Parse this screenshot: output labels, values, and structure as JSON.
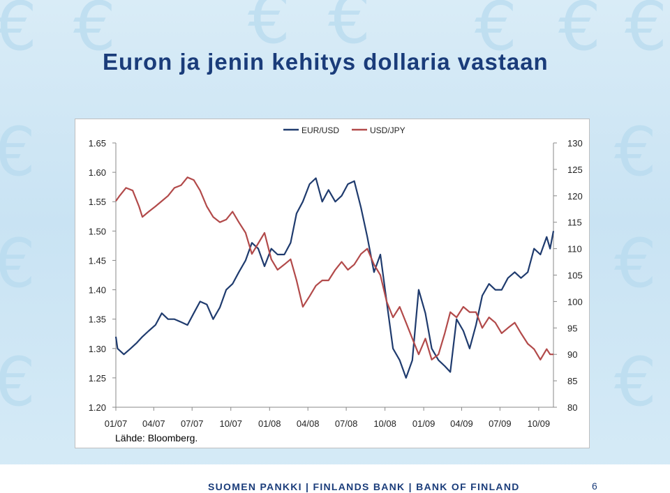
{
  "slide": {
    "title": "Euron ja jenin kehitys dollaria vastaan",
    "source": "Lähde: Bloomberg.",
    "footer": "SUOMEN PANKKI | FINLANDS BANK | BANK OF FINLAND",
    "page_number": "6",
    "background_icon": "euro-sign-icon"
  },
  "chart_data": {
    "type": "line",
    "title": "",
    "legend_position": "top",
    "grid": false,
    "x_tick_labels": [
      "01/07",
      "04/07",
      "07/07",
      "10/07",
      "01/08",
      "04/08",
      "07/08",
      "10/08",
      "01/09",
      "04/09",
      "07/09",
      "10/09"
    ],
    "x_ticks": [
      "2007-01-01",
      "2007-04-01",
      "2007-07-01",
      "2007-10-01",
      "2008-01-01",
      "2008-04-01",
      "2008-07-01",
      "2008-10-01",
      "2009-01-01",
      "2009-04-01",
      "2009-07-01",
      "2009-10-01"
    ],
    "xlim": [
      "2007-01-01",
      "2009-11-05"
    ],
    "y_left": {
      "lim": [
        1.2,
        1.65
      ],
      "ticks": [
        "1.20",
        "1.25",
        "1.30",
        "1.35",
        "1.40",
        "1.45",
        "1.50",
        "1.55",
        "1.60",
        "1.65"
      ]
    },
    "y_right": {
      "lim": [
        80,
        130
      ],
      "ticks": [
        "80",
        "85",
        "90",
        "95",
        "100",
        "105",
        "110",
        "115",
        "120",
        "125",
        "130"
      ]
    },
    "series": [
      {
        "name": "EUR/USD",
        "axis": "left",
        "color": "#1f3b6e",
        "points": [
          [
            "2007-01-01",
            1.32
          ],
          [
            "2007-01-05",
            1.3
          ],
          [
            "2007-01-20",
            1.29
          ],
          [
            "2007-02-05",
            1.3
          ],
          [
            "2007-02-20",
            1.31
          ],
          [
            "2007-03-05",
            1.32
          ],
          [
            "2007-03-20",
            1.33
          ],
          [
            "2007-04-05",
            1.34
          ],
          [
            "2007-04-20",
            1.36
          ],
          [
            "2007-05-05",
            1.35
          ],
          [
            "2007-05-20",
            1.35
          ],
          [
            "2007-06-05",
            1.345
          ],
          [
            "2007-06-20",
            1.34
          ],
          [
            "2007-07-05",
            1.36
          ],
          [
            "2007-07-20",
            1.38
          ],
          [
            "2007-08-05",
            1.375
          ],
          [
            "2007-08-20",
            1.35
          ],
          [
            "2007-09-05",
            1.37
          ],
          [
            "2007-09-20",
            1.4
          ],
          [
            "2007-10-05",
            1.41
          ],
          [
            "2007-10-20",
            1.43
          ],
          [
            "2007-11-05",
            1.45
          ],
          [
            "2007-11-20",
            1.48
          ],
          [
            "2007-12-05",
            1.47
          ],
          [
            "2007-12-20",
            1.44
          ],
          [
            "2008-01-05",
            1.47
          ],
          [
            "2008-01-20",
            1.46
          ],
          [
            "2008-02-05",
            1.46
          ],
          [
            "2008-02-20",
            1.48
          ],
          [
            "2008-03-05",
            1.53
          ],
          [
            "2008-03-20",
            1.55
          ],
          [
            "2008-04-05",
            1.58
          ],
          [
            "2008-04-20",
            1.59
          ],
          [
            "2008-05-05",
            1.55
          ],
          [
            "2008-05-20",
            1.57
          ],
          [
            "2008-06-05",
            1.55
          ],
          [
            "2008-06-20",
            1.56
          ],
          [
            "2008-07-05",
            1.58
          ],
          [
            "2008-07-20",
            1.585
          ],
          [
            "2008-08-05",
            1.54
          ],
          [
            "2008-08-20",
            1.49
          ],
          [
            "2008-09-05",
            1.43
          ],
          [
            "2008-09-20",
            1.46
          ],
          [
            "2008-10-05",
            1.38
          ],
          [
            "2008-10-20",
            1.3
          ],
          [
            "2008-11-05",
            1.28
          ],
          [
            "2008-11-20",
            1.25
          ],
          [
            "2008-12-05",
            1.28
          ],
          [
            "2008-12-20",
            1.4
          ],
          [
            "2009-01-05",
            1.36
          ],
          [
            "2009-01-20",
            1.3
          ],
          [
            "2009-02-05",
            1.28
          ],
          [
            "2009-02-20",
            1.27
          ],
          [
            "2009-03-05",
            1.26
          ],
          [
            "2009-03-20",
            1.35
          ],
          [
            "2009-04-05",
            1.33
          ],
          [
            "2009-04-20",
            1.3
          ],
          [
            "2009-05-05",
            1.34
          ],
          [
            "2009-05-20",
            1.39
          ],
          [
            "2009-06-05",
            1.41
          ],
          [
            "2009-06-20",
            1.4
          ],
          [
            "2009-07-05",
            1.4
          ],
          [
            "2009-07-20",
            1.42
          ],
          [
            "2009-08-05",
            1.43
          ],
          [
            "2009-08-20",
            1.42
          ],
          [
            "2009-09-05",
            1.43
          ],
          [
            "2009-09-20",
            1.47
          ],
          [
            "2009-10-05",
            1.46
          ],
          [
            "2009-10-20",
            1.49
          ],
          [
            "2009-10-28",
            1.47
          ],
          [
            "2009-11-05",
            1.5
          ]
        ]
      },
      {
        "name": "USD/JPY",
        "axis": "right",
        "color": "#b24a4a",
        "points": [
          [
            "2007-01-01",
            119
          ],
          [
            "2007-01-10",
            120
          ],
          [
            "2007-01-25",
            121.5
          ],
          [
            "2007-02-10",
            121
          ],
          [
            "2007-02-25",
            118
          ],
          [
            "2007-03-05",
            116
          ],
          [
            "2007-03-20",
            117
          ],
          [
            "2007-04-05",
            118
          ],
          [
            "2007-04-20",
            119
          ],
          [
            "2007-05-05",
            120
          ],
          [
            "2007-05-20",
            121.5
          ],
          [
            "2007-06-05",
            122
          ],
          [
            "2007-06-20",
            123.5
          ],
          [
            "2007-07-05",
            123
          ],
          [
            "2007-07-20",
            121
          ],
          [
            "2007-08-05",
            118
          ],
          [
            "2007-08-20",
            116
          ],
          [
            "2007-09-05",
            115
          ],
          [
            "2007-09-20",
            115.5
          ],
          [
            "2007-10-05",
            117
          ],
          [
            "2007-10-20",
            115
          ],
          [
            "2007-11-05",
            113
          ],
          [
            "2007-11-20",
            109
          ],
          [
            "2007-12-05",
            111
          ],
          [
            "2007-12-20",
            113
          ],
          [
            "2008-01-05",
            108
          ],
          [
            "2008-01-20",
            106
          ],
          [
            "2008-02-05",
            107
          ],
          [
            "2008-02-20",
            108
          ],
          [
            "2008-03-05",
            104
          ],
          [
            "2008-03-20",
            99
          ],
          [
            "2008-04-05",
            101
          ],
          [
            "2008-04-20",
            103
          ],
          [
            "2008-05-05",
            104
          ],
          [
            "2008-05-20",
            104
          ],
          [
            "2008-06-05",
            106
          ],
          [
            "2008-06-20",
            107.5
          ],
          [
            "2008-07-05",
            106
          ],
          [
            "2008-07-20",
            107
          ],
          [
            "2008-08-05",
            109
          ],
          [
            "2008-08-20",
            110
          ],
          [
            "2008-09-05",
            107
          ],
          [
            "2008-09-20",
            105
          ],
          [
            "2008-10-05",
            100
          ],
          [
            "2008-10-20",
            97
          ],
          [
            "2008-11-05",
            99
          ],
          [
            "2008-11-20",
            96
          ],
          [
            "2008-12-05",
            93
          ],
          [
            "2008-12-20",
            90
          ],
          [
            "2009-01-05",
            93
          ],
          [
            "2009-01-20",
            89
          ],
          [
            "2009-02-05",
            90
          ],
          [
            "2009-02-20",
            94
          ],
          [
            "2009-03-05",
            98
          ],
          [
            "2009-03-20",
            97
          ],
          [
            "2009-04-05",
            99
          ],
          [
            "2009-04-20",
            98
          ],
          [
            "2009-05-05",
            98
          ],
          [
            "2009-05-20",
            95
          ],
          [
            "2009-06-05",
            97
          ],
          [
            "2009-06-20",
            96
          ],
          [
            "2009-07-05",
            94
          ],
          [
            "2009-07-20",
            95
          ],
          [
            "2009-08-05",
            96
          ],
          [
            "2009-08-20",
            94
          ],
          [
            "2009-09-05",
            92
          ],
          [
            "2009-09-20",
            91
          ],
          [
            "2009-10-05",
            89
          ],
          [
            "2009-10-20",
            91
          ],
          [
            "2009-10-28",
            90
          ],
          [
            "2009-11-05",
            90
          ]
        ]
      }
    ]
  }
}
